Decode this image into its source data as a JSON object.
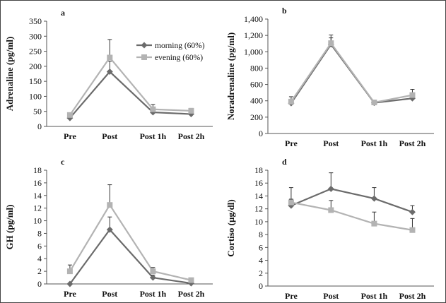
{
  "series_style": [
    {
      "name": "morning (60%)",
      "color": "#6b6b6b",
      "marker": "diamond"
    },
    {
      "name": "evening (60%)",
      "color": "#b3b3b3",
      "marker": "square"
    }
  ],
  "chart_data": [
    {
      "type": "line",
      "panel": "a",
      "title": "",
      "ylabel": "Adrenaline (pg/ml)",
      "categories": [
        "Pre",
        "Post",
        "Post 1h",
        "Post 2h"
      ],
      "yticks": [
        "0",
        "50",
        "100",
        "150",
        "200",
        "250",
        "300",
        "350"
      ],
      "ylim": [
        0,
        350
      ],
      "legend": "top-right",
      "series": [
        {
          "name": "morning (60%)",
          "values": [
            28,
            182,
            47,
            41
          ],
          "errors": [
            5,
            35,
            12,
            5
          ]
        },
        {
          "name": "evening (60%)",
          "values": [
            38,
            229,
            57,
            52
          ],
          "errors": [
            6,
            60,
            16,
            8
          ]
        }
      ]
    },
    {
      "type": "line",
      "panel": "b",
      "title": "",
      "ylabel": "Noradrenaline (pg/ml)",
      "categories": [
        "Pre",
        "Post",
        "Post 1h",
        "Post 2h"
      ],
      "yticks": [
        "0",
        "200",
        "400",
        "600",
        "800",
        "1,000",
        "1,200",
        "1,400"
      ],
      "ylim": [
        0,
        1400
      ],
      "series": [
        {
          "name": "morning (60%)",
          "values": [
            370,
            1090,
            375,
            430
          ],
          "errors": [
            30,
            80,
            20,
            40
          ]
        },
        {
          "name": "evening (60%)",
          "values": [
            390,
            1105,
            380,
            470
          ],
          "errors": [
            60,
            100,
            20,
            70
          ]
        }
      ]
    },
    {
      "type": "line",
      "panel": "c",
      "title": "",
      "ylabel": "GH (pg/ml)",
      "categories": [
        "Pre",
        "Post",
        "Post 1h",
        "Post 2h"
      ],
      "yticks": [
        "0",
        "2",
        "4",
        "6",
        "8",
        "10",
        "12",
        "14",
        "16",
        "18"
      ],
      "ylim": [
        0,
        18
      ],
      "series": [
        {
          "name": "morning (60%)",
          "values": [
            0,
            8.6,
            1.0,
            0.1
          ],
          "errors": [
            0.1,
            2.0,
            0.4,
            0.1
          ]
        },
        {
          "name": "evening (60%)",
          "values": [
            2.0,
            12.5,
            2.0,
            0.6
          ],
          "errors": [
            1.0,
            3.2,
            0.6,
            0.2
          ]
        }
      ]
    },
    {
      "type": "line",
      "panel": "d",
      "title": "",
      "ylabel": "Cortiso (µg/dl)",
      "categories": [
        "Pre",
        "Post",
        "Post 1h",
        "Post 2h"
      ],
      "yticks": [
        "0",
        "2",
        "4",
        "6",
        "8",
        "10",
        "12",
        "14",
        "16",
        "18"
      ],
      "ylim": [
        0,
        18
      ],
      "series": [
        {
          "name": "morning (60%)",
          "values": [
            12.5,
            15.1,
            13.6,
            11.5
          ],
          "errors": [
            1.0,
            2.5,
            1.7,
            1.0
          ]
        },
        {
          "name": "evening (60%)",
          "values": [
            13.0,
            11.8,
            9.7,
            8.7
          ],
          "errors": [
            2.3,
            1.5,
            1.8,
            1.8
          ]
        }
      ]
    }
  ]
}
